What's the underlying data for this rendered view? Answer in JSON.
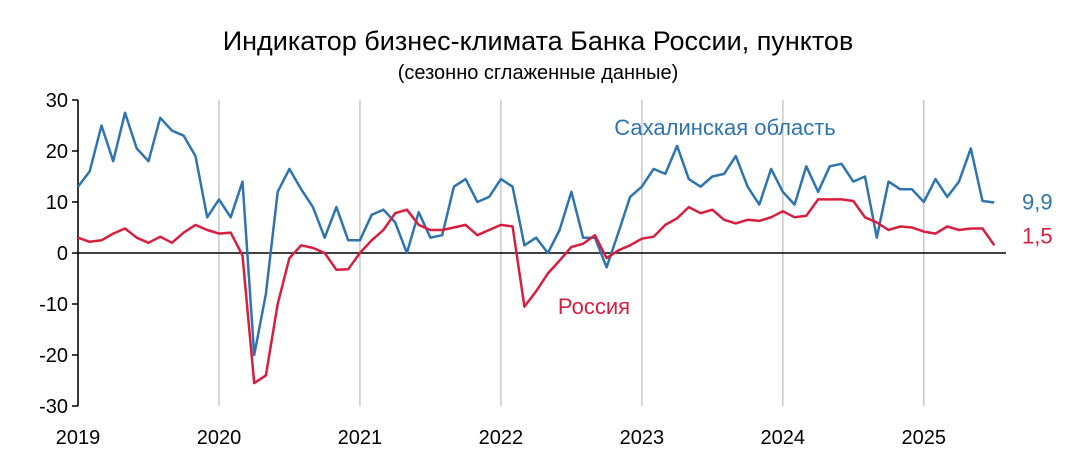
{
  "chart_data": {
    "type": "line",
    "title": "Индикатор бизнес-климата Банка России, пунктов",
    "subtitle": "(сезонно сглаженные данные)",
    "ylim": [
      -30,
      30
    ],
    "yticks": [
      "30",
      "20",
      "10",
      "0",
      "-10",
      "-20",
      "-30"
    ],
    "ytick_values": [
      30,
      20,
      10,
      0,
      -10,
      -20,
      -30
    ],
    "xlim": [
      "2019-01",
      "2025-08"
    ],
    "xticks": [
      "2019",
      "2020",
      "2021",
      "2022",
      "2023",
      "2024",
      "2025"
    ],
    "grid": "vertical",
    "x": [
      "2019-01",
      "2019-02",
      "2019-03",
      "2019-04",
      "2019-05",
      "2019-06",
      "2019-07",
      "2019-08",
      "2019-09",
      "2019-10",
      "2019-11",
      "2019-12",
      "2020-01",
      "2020-02",
      "2020-03",
      "2020-04",
      "2020-05",
      "2020-06",
      "2020-07",
      "2020-08",
      "2020-09",
      "2020-10",
      "2020-11",
      "2020-12",
      "2021-01",
      "2021-02",
      "2021-03",
      "2021-04",
      "2021-05",
      "2021-06",
      "2021-07",
      "2021-08",
      "2021-09",
      "2021-10",
      "2021-11",
      "2021-12",
      "2022-01",
      "2022-02",
      "2022-03",
      "2022-04",
      "2022-05",
      "2022-06",
      "2022-07",
      "2022-08",
      "2022-09",
      "2022-10",
      "2022-11",
      "2022-12",
      "2023-01",
      "2023-02",
      "2023-03",
      "2023-04",
      "2023-05",
      "2023-06",
      "2023-07",
      "2023-08",
      "2023-09",
      "2023-10",
      "2023-11",
      "2023-12",
      "2024-01",
      "2024-02",
      "2024-03",
      "2024-04",
      "2024-05",
      "2024-06",
      "2024-07",
      "2024-08",
      "2024-09",
      "2024-10",
      "2024-11",
      "2024-12",
      "2025-01",
      "2025-02",
      "2025-03",
      "2025-04",
      "2025-05",
      "2025-06",
      "2025-07"
    ],
    "series": [
      {
        "name": "Сахалинская область",
        "color": "#2e74b0",
        "end_label": "9,9",
        "values": [
          13,
          16,
          25,
          18,
          27.5,
          20.5,
          18,
          26.5,
          24,
          23,
          19,
          7,
          10.5,
          7,
          14,
          -20,
          -8,
          12,
          16.5,
          12.5,
          9,
          3,
          9,
          2.5,
          2.5,
          7.5,
          8.5,
          6,
          0,
          8,
          3,
          3.5,
          13,
          14.5,
          10,
          11,
          14.5,
          13,
          1.5,
          3,
          0,
          4.5,
          12,
          3,
          3,
          -2.8,
          4,
          11,
          13,
          16.5,
          15.5,
          21,
          14.5,
          13,
          15,
          15.5,
          19,
          13,
          9.5,
          16.5,
          12,
          9.5,
          17,
          12,
          17,
          17.5,
          14,
          15,
          3,
          14,
          12.5,
          12.5,
          10,
          14.5,
          11,
          14,
          20.5,
          10.2,
          9.9
        ]
      },
      {
        "name": "Россия",
        "color": "#d81e3e",
        "end_label": "1,5",
        "values": [
          3,
          2.2,
          2.5,
          3.8,
          4.8,
          3,
          2,
          3.2,
          2,
          4,
          5.5,
          4.5,
          3.8,
          4,
          -0.5,
          -25.5,
          -24,
          -10,
          -1,
          1.5,
          1,
          0,
          -3.3,
          -3.2,
          0,
          2.5,
          4.5,
          7.8,
          8.5,
          5.5,
          4.5,
          4.5,
          5,
          5.5,
          3.5,
          4.5,
          5.5,
          5.2,
          -10.5,
          -7.5,
          -4,
          -1.5,
          1.2,
          1.8,
          3.5,
          -1,
          0.5,
          1.5,
          2.8,
          3.2,
          5.5,
          6.8,
          9,
          7.8,
          8.5,
          6.5,
          5.8,
          6.5,
          6.3,
          7,
          8.2,
          7,
          7.3,
          10.5,
          10.5,
          10.5,
          10.2,
          7,
          6,
          4.5,
          5.2,
          5,
          4.2,
          3.8,
          5.2,
          4.5,
          4.8,
          4.8,
          1.5
        ]
      }
    ]
  }
}
